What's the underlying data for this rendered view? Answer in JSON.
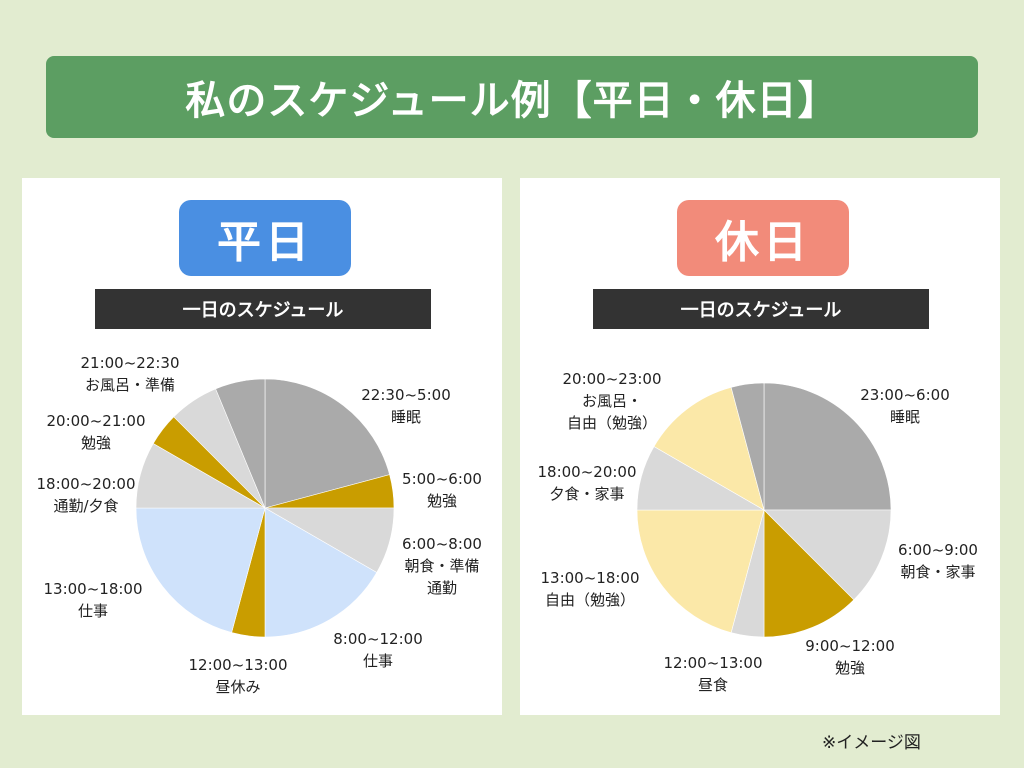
{
  "title": "私のスケジュール例【平日・休日】",
  "panels": [
    {
      "tag": "平日",
      "tag_color": "#4a8fe2",
      "subtitle": "一日のスケジュール",
      "labels": [
        {
          "time": "22:30~5:00",
          "activity": "睡眠"
        },
        {
          "time": "5:00~6:00",
          "activity": "勉強"
        },
        {
          "time": "6:00~8:00",
          "activity": "朝食・準備\n通勤"
        },
        {
          "time": "8:00~12:00",
          "activity": "仕事"
        },
        {
          "time": "12:00~13:00",
          "activity": "昼休み"
        },
        {
          "time": "13:00~18:00",
          "activity": "仕事"
        },
        {
          "time": "18:00~20:00",
          "activity": "通勤/夕食"
        },
        {
          "time": "20:00~21:00",
          "activity": "勉強"
        },
        {
          "time": "21:00~22:30",
          "activity": "お風呂・準備"
        }
      ]
    },
    {
      "tag": "休日",
      "tag_color": "#f28b7a",
      "subtitle": "一日のスケジュール",
      "labels": [
        {
          "time": "23:00~6:00",
          "activity": "睡眠"
        },
        {
          "time": "6:00~9:00",
          "activity": "朝食・家事"
        },
        {
          "time": "9:00~12:00",
          "activity": "勉強"
        },
        {
          "time": "12:00~13:00",
          "activity": "昼食"
        },
        {
          "time": "13:00~18:00",
          "activity": "自由（勉強）"
        },
        {
          "time": "18:00~20:00",
          "activity": "夕食・家事"
        },
        {
          "time": "20:00~23:00",
          "activity": "お風呂・\n自由（勉強）"
        }
      ]
    }
  ],
  "chart_data": [
    {
      "type": "pie",
      "title": "平日",
      "clockwise_from": "00:00 at top",
      "slices": [
        {
          "start_hour": 0,
          "end_hour": 5,
          "color": "#aaaaaa"
        },
        {
          "start_hour": 5,
          "end_hour": 6,
          "color": "#c99d00"
        },
        {
          "start_hour": 6,
          "end_hour": 8,
          "color": "#d9d9d9"
        },
        {
          "start_hour": 8,
          "end_hour": 12,
          "color": "#cfe2fb"
        },
        {
          "start_hour": 12,
          "end_hour": 13,
          "color": "#c99d00"
        },
        {
          "start_hour": 13,
          "end_hour": 18,
          "color": "#cfe2fb"
        },
        {
          "start_hour": 18,
          "end_hour": 20,
          "color": "#d9d9d9"
        },
        {
          "start_hour": 20,
          "end_hour": 21,
          "color": "#c99d00"
        },
        {
          "start_hour": 21,
          "end_hour": 22.5,
          "color": "#d9d9d9"
        },
        {
          "start_hour": 22.5,
          "end_hour": 24,
          "color": "#aaaaaa"
        }
      ]
    },
    {
      "type": "pie",
      "title": "休日",
      "clockwise_from": "00:00 at top",
      "slices": [
        {
          "start_hour": 0,
          "end_hour": 6,
          "color": "#aaaaaa"
        },
        {
          "start_hour": 6,
          "end_hour": 9,
          "color": "#d9d9d9"
        },
        {
          "start_hour": 9,
          "end_hour": 12,
          "color": "#c99d00"
        },
        {
          "start_hour": 12,
          "end_hour": 13,
          "color": "#d9d9d9"
        },
        {
          "start_hour": 13,
          "end_hour": 18,
          "color": "#fbe8a8"
        },
        {
          "start_hour": 18,
          "end_hour": 20,
          "color": "#d9d9d9"
        },
        {
          "start_hour": 20,
          "end_hour": 23,
          "color": "#fbe8a8"
        },
        {
          "start_hour": 23,
          "end_hour": 24,
          "color": "#aaaaaa"
        }
      ]
    }
  ],
  "footnote": "※イメージ図"
}
